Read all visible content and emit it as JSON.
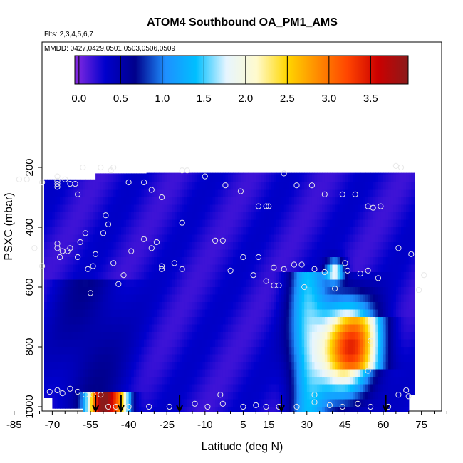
{
  "chart_data": {
    "type": "heatmap",
    "title": "ATOM4 Southbound OA_PM1_AMS",
    "subtitle_flights": "Flts: 2,3,4,5,6,7",
    "subtitle_dates": "MMDD: 0427,0429,0501,0503,0506,0509",
    "xlabel": "Latitude (deg N)",
    "ylabel": "PSXC (mbar)",
    "xlim": [
      -88,
      85
    ],
    "ylim": [
      1020,
      0
    ],
    "x_ticks": [
      -85,
      -70,
      -55,
      -40,
      -25,
      -10,
      5,
      15,
      30,
      45,
      60,
      75
    ],
    "x_tick_labels": [
      "-85",
      "-70",
      "-55",
      "-40",
      "-25",
      "-10",
      "5",
      "15",
      "30",
      "45",
      "60",
      "75"
    ],
    "y_ticks": [
      200,
      400,
      600,
      800,
      1000
    ],
    "y_tick_labels": [
      "200",
      "400",
      "600",
      "800",
      "1000"
    ],
    "colorbar": {
      "ticks": [
        0.0,
        0.5,
        1.0,
        1.5,
        2.0,
        2.5,
        3.0,
        3.5
      ],
      "tick_labels": [
        "0.0",
        "0.5",
        "1.0",
        "1.5",
        "2.0",
        "2.5",
        "3.0",
        "3.5"
      ],
      "range": [
        -0.05,
        3.95
      ],
      "stops": [
        "#8a2be2",
        "#0000cd",
        "#00008b",
        "#1e90ff",
        "#00bfff",
        "#e6f5ff",
        "#fffacd",
        "#ffd700",
        "#ff8c00",
        "#ff4500",
        "#cc0000",
        "#8b1a1a"
      ]
    },
    "arrows_latitude": [
      -53,
      -43,
      -20,
      20,
      61
    ],
    "sample_points": [
      [
        -83,
        240
      ],
      [
        -80,
        240
      ],
      [
        -74,
        250
      ],
      [
        -68,
        230
      ],
      [
        -68,
        245
      ],
      [
        -68,
        255
      ],
      [
        -68,
        265
      ],
      [
        -65,
        240
      ],
      [
        -63,
        255
      ],
      [
        -61,
        255
      ],
      [
        -60,
        290
      ],
      [
        -58,
        200
      ],
      [
        -51,
        200
      ],
      [
        -47,
        210
      ],
      [
        -46,
        200
      ],
      [
        -40,
        250
      ],
      [
        -34,
        250
      ],
      [
        -31,
        275
      ],
      [
        -27,
        300
      ],
      [
        -19,
        210
      ],
      [
        -17,
        210
      ],
      [
        -10,
        230
      ],
      [
        -2,
        260
      ],
      [
        4,
        280
      ],
      [
        11,
        330
      ],
      [
        14,
        330
      ],
      [
        15,
        330
      ],
      [
        21,
        220
      ],
      [
        26,
        260
      ],
      [
        32,
        260
      ],
      [
        37,
        290
      ],
      [
        44,
        290
      ],
      [
        49,
        290
      ],
      [
        54,
        330
      ],
      [
        56,
        335
      ],
      [
        59,
        330
      ],
      [
        65,
        195
      ],
      [
        67,
        200
      ],
      [
        -77,
        470
      ],
      [
        -74,
        530
      ],
      [
        -68,
        455
      ],
      [
        -68,
        470
      ],
      [
        -67,
        500
      ],
      [
        -66,
        480
      ],
      [
        -64,
        480
      ],
      [
        -63,
        470
      ],
      [
        -60,
        500
      ],
      [
        -59,
        450
      ],
      [
        -57,
        420
      ],
      [
        -56,
        540
      ],
      [
        -54,
        530
      ],
      [
        -53,
        490
      ],
      [
        -50,
        420
      ],
      [
        -49,
        360
      ],
      [
        -48,
        390
      ],
      [
        -46,
        520
      ],
      [
        -42,
        560
      ],
      [
        -39,
        480
      ],
      [
        -34,
        440
      ],
      [
        -31,
        470
      ],
      [
        -29,
        450
      ],
      [
        -27,
        540
      ],
      [
        -22,
        520
      ],
      [
        -19,
        540
      ],
      [
        -19,
        385
      ],
      [
        -6,
        445
      ],
      [
        -3,
        445
      ],
      [
        0,
        545
      ],
      [
        5,
        500
      ],
      [
        9,
        560
      ],
      [
        11,
        500
      ],
      [
        14,
        580
      ],
      [
        17,
        595
      ],
      [
        17,
        535
      ],
      [
        19,
        595
      ],
      [
        21,
        540
      ],
      [
        25,
        525
      ],
      [
        28,
        525
      ],
      [
        29,
        600
      ],
      [
        33,
        540
      ],
      [
        37,
        550
      ],
      [
        41,
        605
      ],
      [
        45,
        520
      ],
      [
        46,
        545
      ],
      [
        51,
        555
      ],
      [
        54,
        545
      ],
      [
        58,
        570
      ],
      [
        66,
        470
      ],
      [
        71,
        490
      ],
      [
        76,
        560
      ],
      [
        -55,
        620
      ],
      [
        -44,
        590
      ],
      [
        -27,
        530
      ],
      [
        74,
        610
      ],
      [
        -71,
        950
      ],
      [
        -68,
        945
      ],
      [
        -66,
        955
      ],
      [
        -63,
        940
      ],
      [
        -60,
        950
      ],
      [
        -57,
        960
      ],
      [
        -54,
        960
      ],
      [
        -51,
        960
      ],
      [
        -48,
        1000
      ],
      [
        -45,
        1000
      ],
      [
        -40,
        1000
      ],
      [
        -32,
        1000
      ],
      [
        -24,
        1000
      ],
      [
        -14,
        990
      ],
      [
        -9,
        1000
      ],
      [
        -4,
        960
      ],
      [
        -3,
        990
      ],
      [
        5,
        1000
      ],
      [
        10,
        995
      ],
      [
        14,
        1000
      ],
      [
        19,
        1000
      ],
      [
        26,
        1000
      ],
      [
        33,
        985
      ],
      [
        33,
        960
      ],
      [
        39,
        995
      ],
      [
        44,
        1000
      ],
      [
        50,
        990
      ],
      [
        55,
        1000
      ],
      [
        62,
        1000
      ],
      [
        66,
        960
      ],
      [
        69,
        945
      ],
      [
        70,
        965
      ],
      [
        54,
        880
      ],
      [
        55,
        780
      ]
    ]
  }
}
